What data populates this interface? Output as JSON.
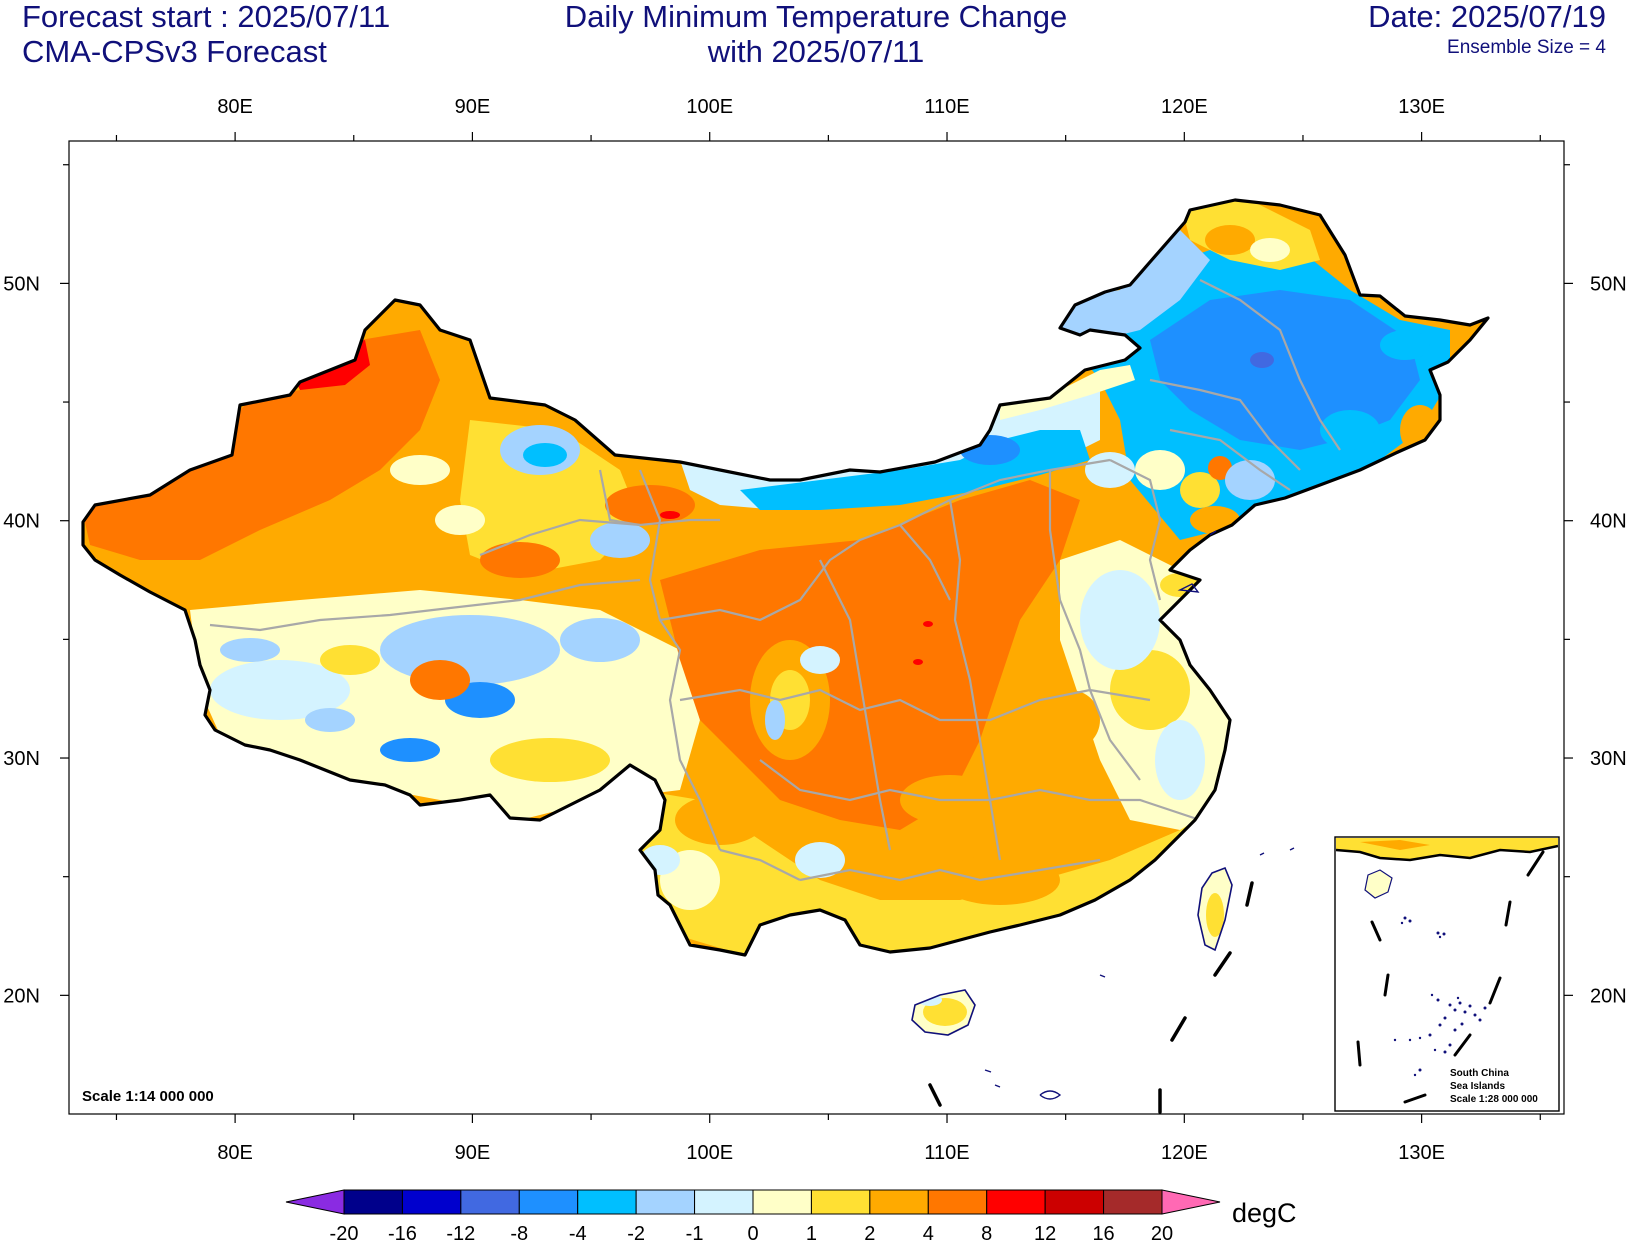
{
  "header": {
    "left_line1": "Forecast start : 2025/07/11",
    "left_line2": "CMA-CPSv3 Forecast",
    "center_line1": "Daily Minimum Temperature Change",
    "center_line2": "with 2025/07/11",
    "right_line1": "Date: 2025/07/19",
    "right_line2": "Ensemble Size = 4"
  },
  "axes": {
    "lon_labels": [
      "80E",
      "90E",
      "100E",
      "110E",
      "120E",
      "130E"
    ],
    "lat_labels": [
      "50N",
      "40N",
      "30N",
      "20N"
    ],
    "lon_range": [
      73,
      136
    ],
    "lat_range": [
      15,
      56
    ]
  },
  "map": {
    "scale_label": "Scale 1:14 000 000",
    "inset_title_line1": "South China",
    "inset_title_line2": "Sea Islands",
    "inset_scale": "Scale 1:28 000 000"
  },
  "colorbar": {
    "unit": "degC",
    "tick_labels": [
      "-20",
      "-16",
      "-12",
      "-8",
      "-4",
      "-2",
      "-1",
      "0",
      "1",
      "2",
      "4",
      "8",
      "12",
      "16",
      "20"
    ],
    "colors": [
      "#8a2be2",
      "#00008b",
      "#0000cd",
      "#4169e1",
      "#1e90ff",
      "#00bfff",
      "#a4d3ff",
      "#d4f3ff",
      "#ffffc8",
      "#ffe033",
      "#ffaa00",
      "#ff7700",
      "#ff0000",
      "#cc0000",
      "#a52a2a",
      "#ff69b4"
    ]
  },
  "field_colors": {
    "warm_strong": "#ff7700",
    "warm": "#ffaa00",
    "mild": "#ffe033",
    "neutral": "#ffffc8",
    "cool_light": "#d4f3ff",
    "cool": "#a4d3ff",
    "cold": "#00bfff",
    "colder": "#1e90ff",
    "coldest": "#4169e1",
    "hot": "#ff0000"
  }
}
